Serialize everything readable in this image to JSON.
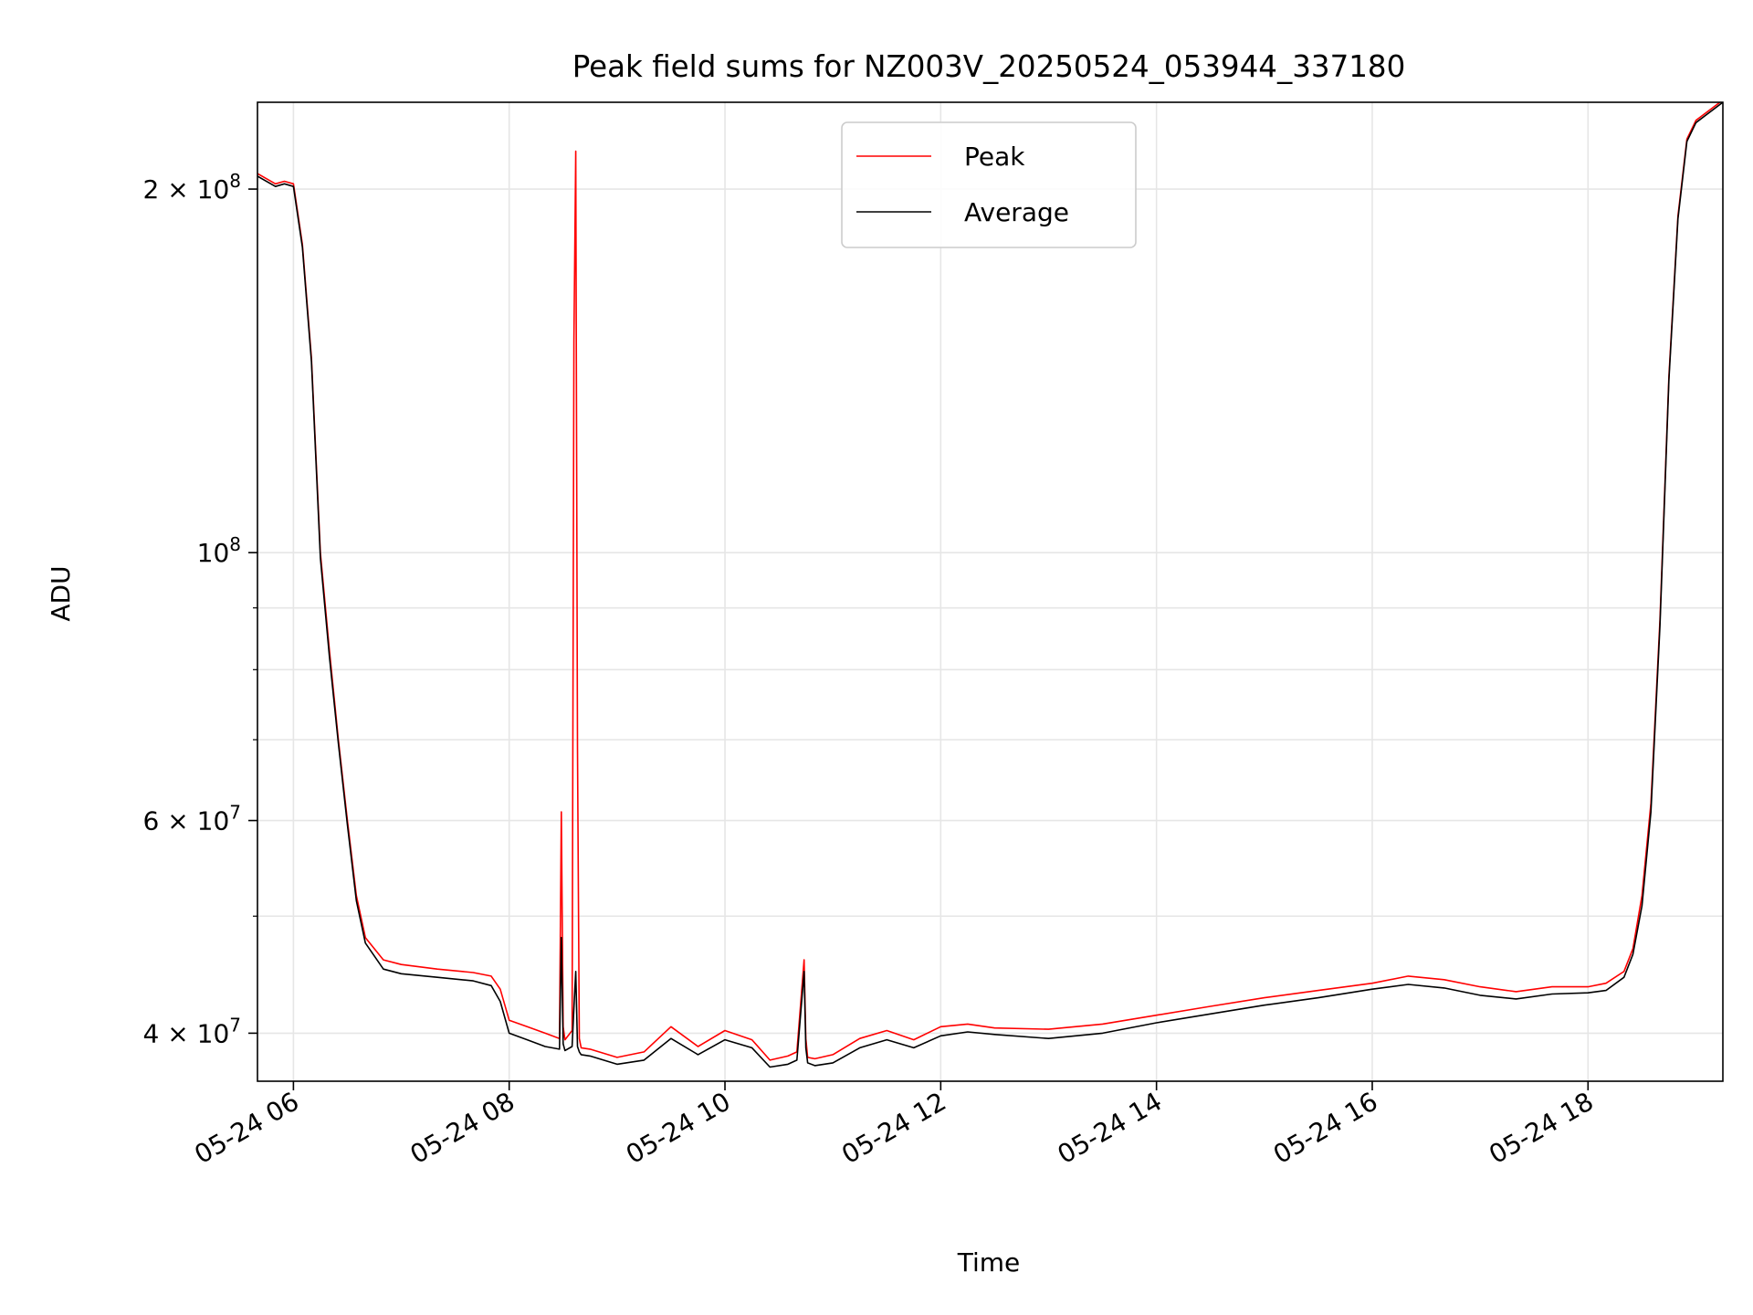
{
  "chart_data": {
    "type": "line",
    "title": "Peak field sums for NZ003V_20250524_053944_337180",
    "xlabel": "Time",
    "ylabel": "ADU",
    "yscale": "log",
    "grid": true,
    "legend_position": "top-center",
    "xlim": [
      "2025-05-24 05:40",
      "2025-05-24 19:15"
    ],
    "ylim": [
      36500000,
      236000000
    ],
    "x_ticks": [
      {
        "t": "2025-05-24 06:00",
        "label": "05-24 06"
      },
      {
        "t": "2025-05-24 08:00",
        "label": "05-24 08"
      },
      {
        "t": "2025-05-24 10:00",
        "label": "05-24 10"
      },
      {
        "t": "2025-05-24 12:00",
        "label": "05-24 12"
      },
      {
        "t": "2025-05-24 14:00",
        "label": "05-24 14"
      },
      {
        "t": "2025-05-24 16:00",
        "label": "05-24 16"
      },
      {
        "t": "2025-05-24 18:00",
        "label": "05-24 18"
      }
    ],
    "y_ticks_major": [
      {
        "value": 40000000,
        "base": "4 × 10",
        "exp": "7"
      },
      {
        "value": 60000000,
        "base": "6 × 10",
        "exp": "7"
      },
      {
        "value": 100000000,
        "base": "10",
        "exp": "8"
      },
      {
        "value": 200000000,
        "base": "2 × 10",
        "exp": "8"
      }
    ],
    "y_ticks_minor": [
      50000000,
      70000000,
      80000000,
      90000000
    ],
    "series": [
      {
        "name": "Peak",
        "color": "#ff0000",
        "x": [
          "05:40",
          "05:50",
          "05:55",
          "06:00",
          "06:05",
          "06:10",
          "06:15",
          "06:20",
          "06:25",
          "06:30",
          "06:35",
          "06:40",
          "06:50",
          "07:00",
          "07:20",
          "07:40",
          "07:50",
          "07:55",
          "08:00",
          "08:10",
          "08:20",
          "08:28",
          "08:29",
          "08:30",
          "08:31",
          "08:35",
          "08:36",
          "08:37",
          "08:38",
          "08:39",
          "08:40",
          "08:45",
          "09:00",
          "09:15",
          "09:30",
          "09:45",
          "10:00",
          "10:15",
          "10:25",
          "10:35",
          "10:40",
          "10:44",
          "10:45",
          "10:46",
          "10:50",
          "11:00",
          "11:15",
          "11:30",
          "11:45",
          "12:00",
          "12:15",
          "12:30",
          "13:00",
          "13:30",
          "14:00",
          "14:30",
          "15:00",
          "15:30",
          "16:00",
          "16:20",
          "16:40",
          "17:00",
          "17:20",
          "17:40",
          "18:00",
          "18:10",
          "18:20",
          "18:25",
          "18:30",
          "18:35",
          "18:40",
          "18:45",
          "18:50",
          "18:55",
          "19:00",
          "19:15"
        ],
        "y": [
          206000000,
          202000000,
          203000000,
          202000000,
          180000000,
          145000000,
          100000000,
          83000000,
          70000000,
          60000000,
          52000000,
          48000000,
          46000000,
          45600000,
          45200000,
          44900000,
          44600000,
          43500000,
          41000000,
          40500000,
          40000000,
          39600000,
          61000000,
          40500000,
          39500000,
          40200000,
          150000000,
          215000000,
          69000000,
          39600000,
          38900000,
          38800000,
          38200000,
          38600000,
          40500000,
          39000000,
          40200000,
          39500000,
          38000000,
          38300000,
          38600000,
          46000000,
          39600000,
          38200000,
          38100000,
          38400000,
          39600000,
          40200000,
          39500000,
          40500000,
          40700000,
          40400000,
          40300000,
          40700000,
          41400000,
          42100000,
          42800000,
          43400000,
          44000000,
          44600000,
          44300000,
          43700000,
          43300000,
          43700000,
          43700000,
          44000000,
          45000000,
          47000000,
          52000000,
          62000000,
          88000000,
          140000000,
          190000000,
          220000000,
          228000000,
          237000000
        ]
      },
      {
        "name": "Average",
        "color": "#000000",
        "x": [
          "05:40",
          "05:50",
          "05:55",
          "06:00",
          "06:05",
          "06:10",
          "06:15",
          "06:20",
          "06:25",
          "06:30",
          "06:35",
          "06:40",
          "06:50",
          "07:00",
          "07:20",
          "07:40",
          "07:50",
          "07:55",
          "08:00",
          "08:10",
          "08:20",
          "08:28",
          "08:29",
          "08:30",
          "08:31",
          "08:35",
          "08:36",
          "08:37",
          "08:38",
          "08:39",
          "08:40",
          "08:45",
          "09:00",
          "09:15",
          "09:30",
          "09:45",
          "10:00",
          "10:15",
          "10:25",
          "10:35",
          "10:40",
          "10:44",
          "10:45",
          "10:46",
          "10:50",
          "11:00",
          "11:15",
          "11:30",
          "11:45",
          "12:00",
          "12:15",
          "12:30",
          "13:00",
          "13:30",
          "14:00",
          "14:30",
          "15:00",
          "15:30",
          "16:00",
          "16:20",
          "16:40",
          "17:00",
          "17:20",
          "17:40",
          "18:00",
          "18:10",
          "18:20",
          "18:25",
          "18:30",
          "18:35",
          "18:40",
          "18:45",
          "18:50",
          "18:55",
          "19:00",
          "19:15"
        ],
        "y": [
          205000000,
          201000000,
          202000000,
          201000000,
          179000000,
          144000000,
          99000000,
          82000000,
          69500000,
          59500000,
          51500000,
          47500000,
          45200000,
          44800000,
          44500000,
          44200000,
          43800000,
          42500000,
          40000000,
          39500000,
          39000000,
          38800000,
          48000000,
          39200000,
          38700000,
          39000000,
          42000000,
          45000000,
          39000000,
          38600000,
          38400000,
          38300000,
          37700000,
          38000000,
          39600000,
          38400000,
          39500000,
          38900000,
          37500000,
          37700000,
          38000000,
          45000000,
          38900000,
          37800000,
          37600000,
          37800000,
          38900000,
          39500000,
          38900000,
          39800000,
          40100000,
          39900000,
          39600000,
          40000000,
          40800000,
          41500000,
          42200000,
          42800000,
          43500000,
          43900000,
          43600000,
          43000000,
          42700000,
          43100000,
          43200000,
          43400000,
          44500000,
          46500000,
          51000000,
          61000000,
          87000000,
          139000000,
          189000000,
          219000000,
          227000000,
          236000000
        ]
      }
    ]
  }
}
